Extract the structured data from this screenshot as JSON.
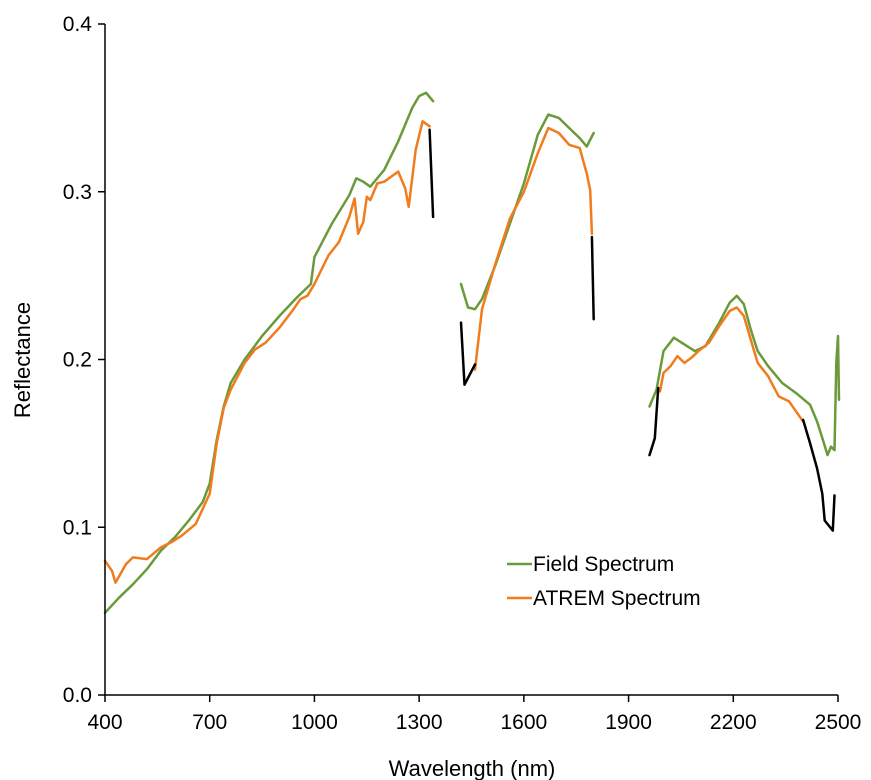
{
  "chart_data": {
    "type": "line",
    "title": "",
    "xlabel": "Wavelength (nm)",
    "ylabel": "Reflectance",
    "xlim": [
      400,
      2500
    ],
    "ylim": [
      0.0,
      0.4
    ],
    "x_ticks": [
      400,
      700,
      1000,
      1300,
      1600,
      1900,
      2200,
      2500
    ],
    "x_tick_labels": [
      "400",
      "700",
      "1000",
      "1300",
      "1600",
      "1900",
      "2200",
      "2500"
    ],
    "y_ticks": [
      0.0,
      0.1,
      0.2,
      0.3,
      0.4
    ],
    "y_tick_labels": [
      "0.0",
      "0.1",
      "0.2",
      "0.3",
      "0.4"
    ],
    "grid": false,
    "legend_position": "bottom-right",
    "series": [
      {
        "name": "Field Spectrum",
        "color": "#6a9a3a",
        "segments": [
          [
            [
              400,
              0.049
            ],
            [
              440,
              0.058
            ],
            [
              480,
              0.066
            ],
            [
              520,
              0.075
            ],
            [
              560,
              0.086
            ],
            [
              600,
              0.094
            ],
            [
              640,
              0.104
            ],
            [
              680,
              0.115
            ],
            [
              700,
              0.126
            ],
            [
              720,
              0.152
            ],
            [
              740,
              0.172
            ],
            [
              760,
              0.186
            ],
            [
              800,
              0.2
            ],
            [
              850,
              0.214
            ],
            [
              900,
              0.226
            ],
            [
              950,
              0.237
            ],
            [
              990,
              0.245
            ],
            [
              1000,
              0.261
            ],
            [
              1050,
              0.281
            ],
            [
              1100,
              0.298
            ],
            [
              1120,
              0.308
            ],
            [
              1140,
              0.306
            ],
            [
              1160,
              0.303
            ],
            [
              1200,
              0.313
            ],
            [
              1240,
              0.33
            ],
            [
              1280,
              0.35
            ],
            [
              1300,
              0.357
            ],
            [
              1320,
              0.359
            ],
            [
              1340,
              0.354
            ]
          ],
          [
            [
              1420,
              0.245
            ],
            [
              1440,
              0.231
            ],
            [
              1460,
              0.23
            ],
            [
              1480,
              0.236
            ],
            [
              1520,
              0.257
            ],
            [
              1560,
              0.281
            ],
            [
              1600,
              0.305
            ],
            [
              1640,
              0.334
            ],
            [
              1670,
              0.346
            ],
            [
              1700,
              0.344
            ],
            [
              1740,
              0.336
            ],
            [
              1760,
              0.332
            ],
            [
              1780,
              0.327
            ],
            [
              1800,
              0.335
            ]
          ],
          [
            [
              1960,
              0.172
            ],
            [
              1980,
              0.182
            ],
            [
              2000,
              0.205
            ],
            [
              2030,
              0.213
            ],
            [
              2060,
              0.209
            ],
            [
              2090,
              0.205
            ],
            [
              2120,
              0.208
            ],
            [
              2160,
              0.222
            ],
            [
              2190,
              0.234
            ],
            [
              2210,
              0.238
            ],
            [
              2230,
              0.233
            ],
            [
              2250,
              0.218
            ],
            [
              2270,
              0.205
            ],
            [
              2300,
              0.196
            ],
            [
              2340,
              0.186
            ],
            [
              2380,
              0.18
            ],
            [
              2420,
              0.173
            ],
            [
              2440,
              0.163
            ],
            [
              2460,
              0.15
            ],
            [
              2470,
              0.143
            ],
            [
              2480,
              0.148
            ],
            [
              2490,
              0.146
            ],
            [
              2495,
              0.198
            ],
            [
              2500,
              0.214
            ],
            [
              2503,
              0.176
            ]
          ]
        ]
      },
      {
        "name": "ATREM Spectrum",
        "color": "#f07c1e",
        "segments": [
          [
            [
              400,
              0.08
            ],
            [
              420,
              0.074
            ],
            [
              430,
              0.067
            ],
            [
              460,
              0.078
            ],
            [
              480,
              0.082
            ],
            [
              520,
              0.081
            ],
            [
              560,
              0.088
            ],
            [
              590,
              0.091
            ],
            [
              620,
              0.095
            ],
            [
              660,
              0.102
            ],
            [
              700,
              0.12
            ],
            [
              720,
              0.15
            ],
            [
              740,
              0.171
            ],
            [
              760,
              0.182
            ],
            [
              800,
              0.198
            ],
            [
              830,
              0.206
            ],
            [
              860,
              0.21
            ],
            [
              900,
              0.219
            ],
            [
              940,
              0.23
            ],
            [
              960,
              0.236
            ],
            [
              980,
              0.238
            ],
            [
              1000,
              0.245
            ],
            [
              1040,
              0.262
            ],
            [
              1070,
              0.27
            ],
            [
              1100,
              0.285
            ],
            [
              1115,
              0.296
            ],
            [
              1125,
              0.275
            ],
            [
              1140,
              0.282
            ],
            [
              1150,
              0.297
            ],
            [
              1160,
              0.295
            ],
            [
              1180,
              0.305
            ],
            [
              1200,
              0.306
            ],
            [
              1240,
              0.312
            ],
            [
              1260,
              0.302
            ],
            [
              1270,
              0.291
            ],
            [
              1290,
              0.325
            ],
            [
              1310,
              0.342
            ],
            [
              1330,
              0.339
            ]
          ],
          [
            [
              1460,
              0.194
            ],
            [
              1480,
              0.23
            ],
            [
              1520,
              0.258
            ],
            [
              1560,
              0.284
            ],
            [
              1600,
              0.3
            ],
            [
              1640,
              0.323
            ],
            [
              1670,
              0.338
            ],
            [
              1700,
              0.335
            ],
            [
              1730,
              0.328
            ],
            [
              1760,
              0.326
            ],
            [
              1780,
              0.311
            ],
            [
              1790,
              0.301
            ],
            [
              1795,
              0.275
            ]
          ],
          [
            [
              1990,
              0.181
            ],
            [
              2000,
              0.192
            ],
            [
              2020,
              0.196
            ],
            [
              2040,
              0.202
            ],
            [
              2060,
              0.198
            ],
            [
              2080,
              0.201
            ],
            [
              2100,
              0.205
            ],
            [
              2130,
              0.21
            ],
            [
              2160,
              0.22
            ],
            [
              2190,
              0.229
            ],
            [
              2210,
              0.231
            ],
            [
              2230,
              0.226
            ],
            [
              2250,
              0.212
            ],
            [
              2270,
              0.198
            ],
            [
              2300,
              0.19
            ],
            [
              2330,
              0.178
            ],
            [
              2360,
              0.175
            ],
            [
              2400,
              0.163
            ]
          ]
        ]
      }
    ],
    "unlabeled_segments": [
      {
        "color": "#000000",
        "segments": [
          [
            [
              1330,
              0.337
            ],
            [
              1340,
              0.285
            ]
          ],
          [
            [
              1795,
              0.273
            ],
            [
              1800,
              0.224
            ]
          ],
          [
            [
              1420,
              0.222
            ],
            [
              1430,
              0.185
            ],
            [
              1460,
              0.197
            ]
          ],
          [
            [
              1960,
              0.143
            ],
            [
              1975,
              0.153
            ],
            [
              1985,
              0.183
            ]
          ],
          [
            [
              2400,
              0.164
            ],
            [
              2420,
              0.15
            ],
            [
              2440,
              0.135
            ],
            [
              2455,
              0.12
            ],
            [
              2462,
              0.104
            ],
            [
              2485,
              0.098
            ],
            [
              2490,
              0.119
            ]
          ]
        ]
      }
    ]
  }
}
